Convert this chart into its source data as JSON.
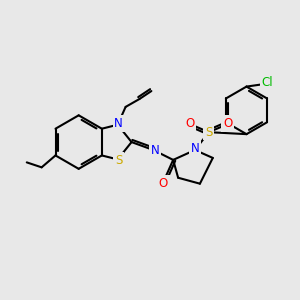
{
  "background_color": "#e8e8e8",
  "bond_color": "#000000",
  "atom_colors": {
    "N": "#0000ff",
    "S_thz": "#ccaa00",
    "S_sul": "#ccaa00",
    "O": "#ff0000",
    "Cl": "#00bb00",
    "C": "#000000"
  },
  "figsize": [
    3.0,
    3.0
  ],
  "dpi": 100
}
